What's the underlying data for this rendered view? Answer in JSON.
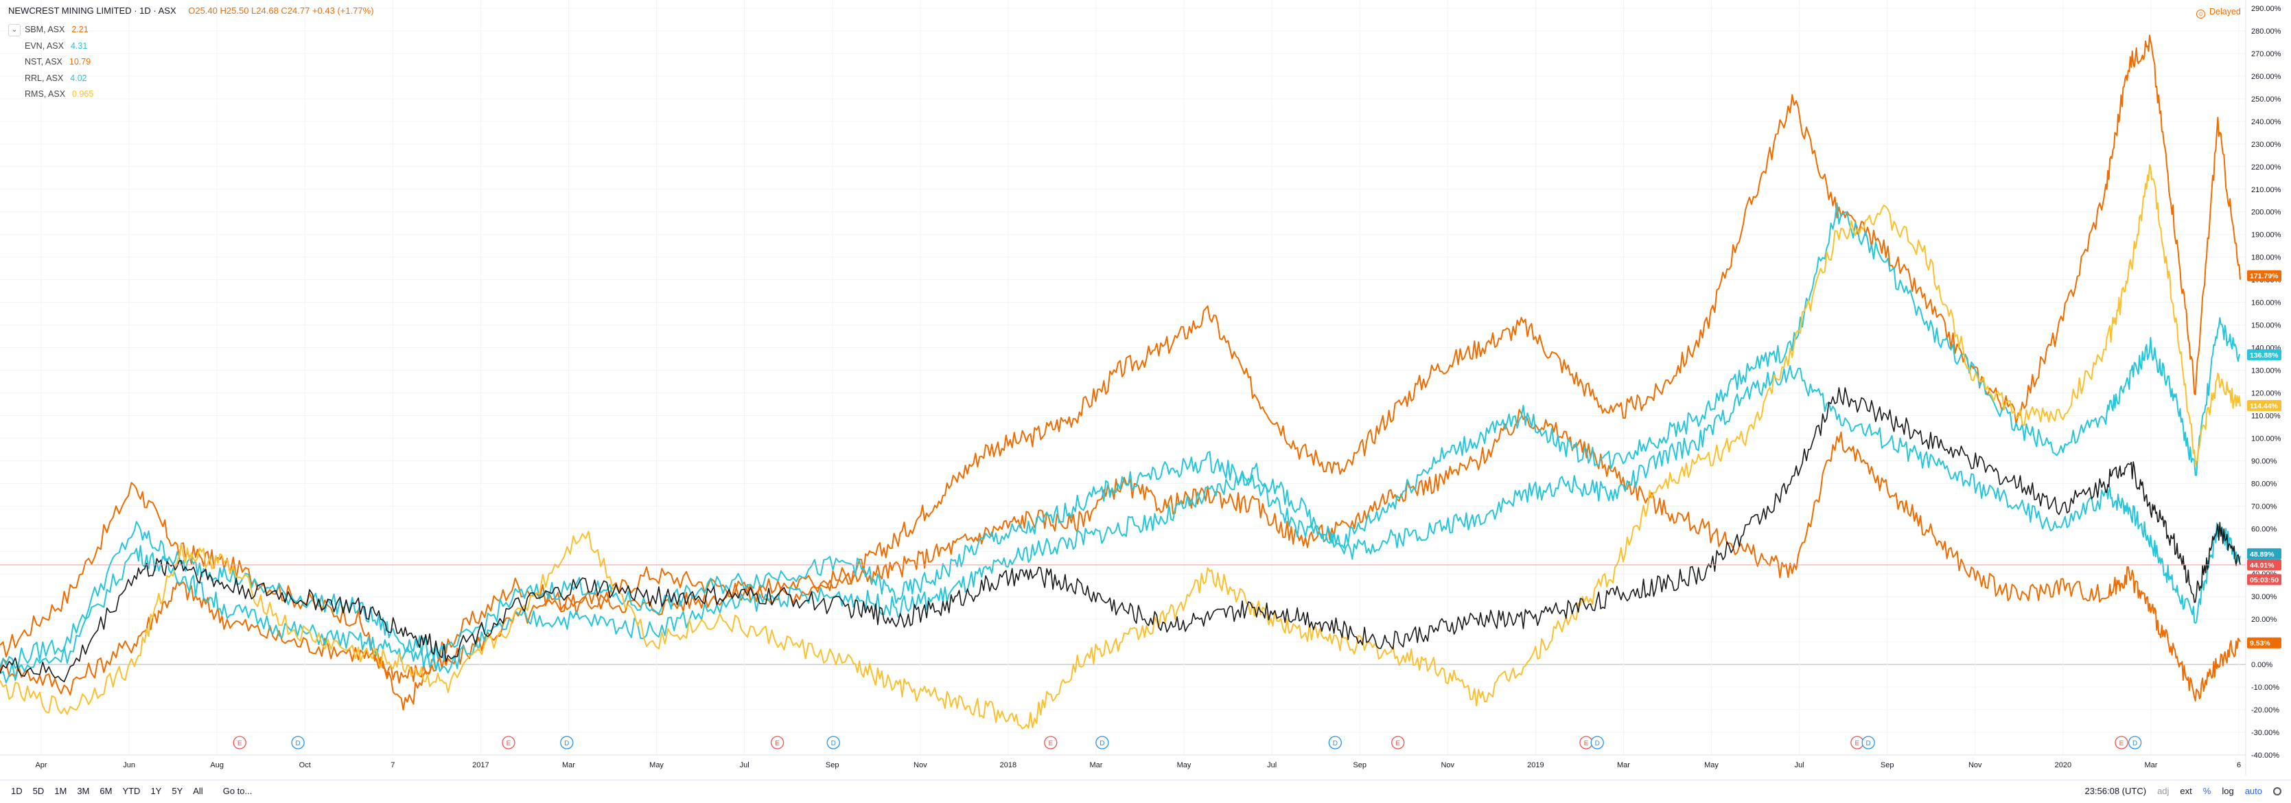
{
  "header": {
    "title": "NEWCREST MINING LIMITED · 1D · ASX",
    "ohlc": "O25.40 H25.50 L24.68 C24.77 +0.43 (+1.77%)"
  },
  "legend": [
    {
      "symbol": "SBM, ASX",
      "value": "2.21",
      "color": "#ef6c00"
    },
    {
      "symbol": "EVN, ASX",
      "value": "4.31",
      "color": "#26c6da"
    },
    {
      "symbol": "NST, ASX",
      "value": "10.79",
      "color": "#ef6c00"
    },
    {
      "symbol": "RRL, ASX",
      "value": "4.02",
      "color": "#26c6da"
    },
    {
      "symbol": "RMS, ASX",
      "value": "0.965",
      "color": "#fbc02d"
    }
  ],
  "delayed_label": "Delayed",
  "timeframes": [
    "1D",
    "5D",
    "1M",
    "3M",
    "6M",
    "YTD",
    "1Y",
    "5Y",
    "All"
  ],
  "goto_label": "Go to...",
  "status": {
    "clock": "23:56:08 (UTC)",
    "adj": "adj",
    "ext": "ext",
    "percent": "%",
    "log": "log",
    "auto": "auto"
  },
  "chart_data": {
    "type": "line",
    "x_ticks": [
      "Apr",
      "Jun",
      "Aug",
      "Oct",
      "7",
      "2017",
      "Mar",
      "May",
      "Jul",
      "Sep",
      "Nov",
      "2018",
      "Mar",
      "May",
      "Jul",
      "Sep",
      "Nov",
      "2019",
      "Mar",
      "May",
      "Jul",
      "Sep",
      "Nov",
      "2020",
      "Mar",
      "6"
    ],
    "y_ticks": [
      "290.00%",
      "280.00%",
      "270.00%",
      "260.00%",
      "250.00%",
      "240.00%",
      "230.00%",
      "220.00%",
      "210.00%",
      "200.00%",
      "190.00%",
      "180.00%",
      "170.00%",
      "160.00%",
      "150.00%",
      "140.00%",
      "130.00%",
      "120.00%",
      "110.00%",
      "100.00%",
      "90.00%",
      "80.00%",
      "70.00%",
      "60.00%",
      "50.00%",
      "40.00%",
      "30.00%",
      "20.00%",
      "10.00%",
      "0.00%",
      "-10.00%",
      "-20.00%",
      "-30.00%",
      "-40.00%"
    ],
    "ylim": [
      -40,
      290
    ],
    "price_badges": [
      {
        "label": "171.79%",
        "value": 171.79,
        "color": "#ef6c00"
      },
      {
        "label": "136.88%",
        "value": 136.88,
        "color": "#26c6da"
      },
      {
        "label": "114.44%",
        "value": 114.44,
        "color": "#fbc02d"
      },
      {
        "label": "48.89%",
        "value": 48.89,
        "color": "#26a6c2"
      },
      {
        "label": "44.01%",
        "value": 44.01,
        "color": "#ef5350"
      },
      {
        "label": "05:03:50",
        "value": 37.5,
        "color": "#ef5350"
      },
      {
        "label": "9.53%",
        "value": 9.53,
        "color": "#ef6c00"
      }
    ],
    "events": [
      {
        "type": "E",
        "x": 0.107
      },
      {
        "type": "D",
        "x": 0.133
      },
      {
        "type": "E",
        "x": 0.227
      },
      {
        "type": "D",
        "x": 0.253
      },
      {
        "type": "E",
        "x": 0.347
      },
      {
        "type": "D",
        "x": 0.372
      },
      {
        "type": "E",
        "x": 0.469
      },
      {
        "type": "D",
        "x": 0.492
      },
      {
        "type": "D",
        "x": 0.596
      },
      {
        "type": "E",
        "x": 0.624
      },
      {
        "type": "E",
        "x": 0.708
      },
      {
        "type": "D",
        "x": 0.713
      },
      {
        "type": "E",
        "x": 0.829
      },
      {
        "type": "D",
        "x": 0.834
      },
      {
        "type": "E",
        "x": 0.947
      },
      {
        "type": "D",
        "x": 0.953
      }
    ],
    "series": [
      {
        "color": "#ef6c00",
        "x": [
          0,
          0.03,
          0.06,
          0.08,
          0.1,
          0.13,
          0.16,
          0.18,
          0.2,
          0.23,
          0.26,
          0.29,
          0.32,
          0.35,
          0.38,
          0.4,
          0.42,
          0.44,
          0.46,
          0.48,
          0.5,
          0.52,
          0.54,
          0.56,
          0.58,
          0.6,
          0.62,
          0.64,
          0.66,
          0.68,
          0.7,
          0.72,
          0.74,
          0.76,
          0.78,
          0.8,
          0.82,
          0.84,
          0.86,
          0.88,
          0.9,
          0.92,
          0.94,
          0.95,
          0.96,
          0.97,
          0.98,
          0.99,
          1.0
        ],
        "y": [
          5,
          30,
          80,
          50,
          45,
          30,
          20,
          -20,
          10,
          35,
          25,
          40,
          35,
          30,
          40,
          55,
          75,
          95,
          100,
          110,
          130,
          140,
          155,
          120,
          95,
          85,
          110,
          130,
          140,
          150,
          130,
          110,
          120,
          145,
          200,
          250,
          200,
          185,
          160,
          130,
          110,
          150,
          210,
          265,
          275,
          200,
          120,
          240,
          170
        ]
      },
      {
        "color": "#ef6c00",
        "x": [
          0,
          0.03,
          0.06,
          0.08,
          0.1,
          0.13,
          0.16,
          0.18,
          0.2,
          0.23,
          0.26,
          0.29,
          0.32,
          0.35,
          0.38,
          0.4,
          0.42,
          0.44,
          0.46,
          0.48,
          0.5,
          0.52,
          0.54,
          0.56,
          0.58,
          0.6,
          0.62,
          0.64,
          0.66,
          0.68,
          0.7,
          0.72,
          0.74,
          0.76,
          0.78,
          0.8,
          0.82,
          0.84,
          0.86,
          0.88,
          0.9,
          0.92,
          0.94,
          0.95,
          0.96,
          0.97,
          0.98,
          0.99,
          1.0
        ],
        "y": [
          0,
          -10,
          10,
          35,
          20,
          10,
          5,
          -5,
          0,
          20,
          30,
          25,
          30,
          35,
          38,
          42,
          50,
          58,
          65,
          62,
          80,
          70,
          75,
          70,
          55,
          60,
          75,
          80,
          90,
          110,
          100,
          85,
          70,
          60,
          50,
          40,
          100,
          80,
          60,
          40,
          30,
          35,
          30,
          40,
          25,
          5,
          -15,
          0,
          10
        ]
      },
      {
        "color": "#26c6da",
        "x": [
          0,
          0.03,
          0.06,
          0.08,
          0.1,
          0.13,
          0.16,
          0.18,
          0.2,
          0.23,
          0.26,
          0.29,
          0.32,
          0.35,
          0.38,
          0.4,
          0.42,
          0.44,
          0.46,
          0.48,
          0.5,
          0.52,
          0.54,
          0.56,
          0.58,
          0.6,
          0.62,
          0.64,
          0.66,
          0.68,
          0.7,
          0.72,
          0.74,
          0.76,
          0.78,
          0.8,
          0.82,
          0.84,
          0.86,
          0.88,
          0.9,
          0.92,
          0.94,
          0.95,
          0.96,
          0.97,
          0.98,
          0.99,
          1.0
        ],
        "y": [
          0,
          10,
          60,
          45,
          40,
          30,
          25,
          10,
          5,
          30,
          35,
          25,
          35,
          40,
          45,
          30,
          40,
          55,
          60,
          70,
          80,
          85,
          90,
          80,
          60,
          55,
          70,
          90,
          100,
          110,
          95,
          90,
          100,
          110,
          130,
          140,
          200,
          180,
          150,
          130,
          105,
          95,
          110,
          125,
          140,
          120,
          85,
          150,
          137
        ]
      },
      {
        "color": "#26c6da",
        "x": [
          0,
          0.03,
          0.06,
          0.08,
          0.1,
          0.13,
          0.16,
          0.18,
          0.2,
          0.23,
          0.26,
          0.29,
          0.32,
          0.35,
          0.38,
          0.4,
          0.42,
          0.44,
          0.46,
          0.48,
          0.5,
          0.52,
          0.54,
          0.56,
          0.58,
          0.6,
          0.62,
          0.64,
          0.66,
          0.68,
          0.7,
          0.72,
          0.74,
          0.76,
          0.78,
          0.8,
          0.82,
          0.84,
          0.86,
          0.88,
          0.9,
          0.92,
          0.94,
          0.95,
          0.96,
          0.97,
          0.98,
          0.99,
          1.0
        ],
        "y": [
          -5,
          5,
          50,
          40,
          25,
          15,
          10,
          5,
          0,
          20,
          20,
          15,
          25,
          30,
          30,
          25,
          30,
          40,
          50,
          55,
          60,
          65,
          75,
          85,
          70,
          50,
          55,
          60,
          65,
          75,
          80,
          75,
          90,
          100,
          120,
          130,
          110,
          100,
          90,
          80,
          70,
          60,
          75,
          70,
          55,
          35,
          20,
          60,
          48
        ]
      },
      {
        "color": "#fbc02d",
        "x": [
          0,
          0.03,
          0.06,
          0.08,
          0.1,
          0.13,
          0.16,
          0.18,
          0.2,
          0.23,
          0.26,
          0.29,
          0.32,
          0.35,
          0.38,
          0.4,
          0.42,
          0.44,
          0.46,
          0.48,
          0.5,
          0.52,
          0.54,
          0.56,
          0.58,
          0.6,
          0.62,
          0.64,
          0.66,
          0.68,
          0.7,
          0.72,
          0.74,
          0.76,
          0.78,
          0.8,
          0.82,
          0.84,
          0.86,
          0.88,
          0.9,
          0.92,
          0.94,
          0.95,
          0.96,
          0.97,
          0.98,
          0.99,
          1.0
        ],
        "y": [
          -10,
          -20,
          0,
          50,
          45,
          15,
          5,
          0,
          -10,
          20,
          60,
          10,
          20,
          10,
          0,
          -10,
          -15,
          -20,
          -25,
          0,
          10,
          20,
          40,
          25,
          15,
          10,
          5,
          0,
          -15,
          0,
          20,
          40,
          80,
          90,
          100,
          140,
          190,
          200,
          180,
          130,
          110,
          110,
          140,
          170,
          220,
          160,
          90,
          125,
          114
        ]
      },
      {
        "color": "#1a1a1a",
        "x": [
          0,
          0.03,
          0.06,
          0.08,
          0.1,
          0.13,
          0.16,
          0.18,
          0.2,
          0.23,
          0.26,
          0.29,
          0.32,
          0.35,
          0.38,
          0.4,
          0.42,
          0.44,
          0.46,
          0.48,
          0.5,
          0.52,
          0.54,
          0.56,
          0.58,
          0.6,
          0.62,
          0.64,
          0.66,
          0.68,
          0.7,
          0.72,
          0.74,
          0.76,
          0.78,
          0.8,
          0.82,
          0.84,
          0.86,
          0.88,
          0.9,
          0.92,
          0.94,
          0.95,
          0.96,
          0.97,
          0.98,
          0.99,
          1.0
        ],
        "y": [
          0,
          -5,
          40,
          45,
          35,
          30,
          25,
          15,
          5,
          25,
          35,
          30,
          30,
          30,
          25,
          20,
          25,
          35,
          40,
          35,
          25,
          18,
          20,
          25,
          22,
          15,
          10,
          15,
          20,
          20,
          25,
          30,
          35,
          40,
          60,
          80,
          120,
          110,
          100,
          90,
          80,
          70,
          80,
          90,
          70,
          55,
          30,
          60,
          44
        ]
      }
    ]
  }
}
